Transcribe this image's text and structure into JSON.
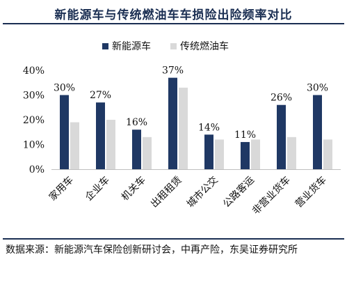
{
  "title": "新能源车与传统燃油车车损险出险频率对比",
  "source_text": "数据来源：新能源汽车保险创新研讨会，中再产险，东吴证券研究所",
  "chart_data": {
    "type": "bar",
    "categories": [
      "家用车",
      "企业车",
      "机关车",
      "出租租赁",
      "城市公交",
      "公路客运",
      "非营业货车",
      "营业货车"
    ],
    "series": [
      {
        "name": "新能源车",
        "values": [
          30,
          27,
          16,
          37,
          14,
          11,
          26,
          30
        ],
        "color": "#1f3864"
      },
      {
        "name": "传统燃油车",
        "values": [
          19,
          20,
          13,
          33,
          12,
          12,
          13,
          12
        ],
        "color": "#d9d9d9"
      }
    ],
    "data_labels": [
      "30%",
      "27%",
      "16%",
      "37%",
      "14%",
      "11%",
      "26%",
      "30%"
    ],
    "y_ticks": [
      "0%",
      "10%",
      "20%",
      "30%",
      "40%"
    ],
    "y_tick_values": [
      0,
      10,
      20,
      30,
      40
    ],
    "ylim": [
      0,
      40
    ],
    "legend_position": "top",
    "grid": false
  }
}
